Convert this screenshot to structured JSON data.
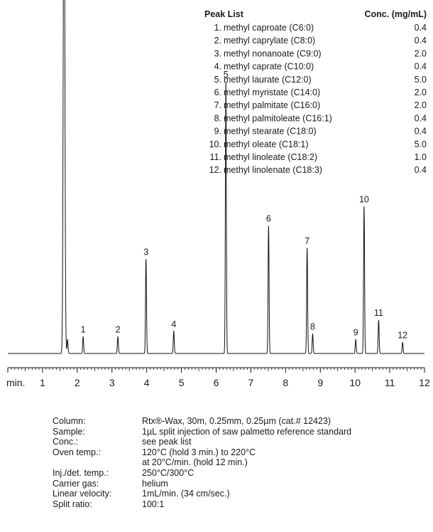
{
  "chart_data": {
    "type": "line",
    "x_axis": {
      "min": 0,
      "max": 12,
      "unit_label": "min.",
      "tick_labels": [
        "1",
        "2",
        "3",
        "4",
        "5",
        "6",
        "7",
        "8",
        "9",
        "10",
        "11",
        "12"
      ],
      "minor_ticks_per_unit": 10
    },
    "solvent_peak": {
      "x": 1.62,
      "y": 100
    },
    "peaks": [
      {
        "label": "1",
        "x": 2.17,
        "y": 3
      },
      {
        "label": "2",
        "x": 3.17,
        "y": 3
      },
      {
        "label": "3",
        "x": 3.98,
        "y": 17
      },
      {
        "label": "4",
        "x": 4.78,
        "y": 4
      },
      {
        "label": "5",
        "x": 6.28,
        "y": 49
      },
      {
        "label": "6",
        "x": 7.51,
        "y": 23
      },
      {
        "label": "7",
        "x": 8.62,
        "y": 19
      },
      {
        "label": "8",
        "x": 8.78,
        "y": 3.5
      },
      {
        "label": "9",
        "x": 10.02,
        "y": 2.5
      },
      {
        "label": "10",
        "x": 10.26,
        "y": 26.5
      },
      {
        "label": "11",
        "x": 10.68,
        "y": 6
      },
      {
        "label": "12",
        "x": 11.37,
        "y": 2
      }
    ],
    "y_range": [
      0,
      100
    ],
    "grid": false
  },
  "peak_list": {
    "header": "Peak List",
    "conc_header": "Conc. (mg/mL)",
    "items": [
      {
        "num": "1.",
        "name": "methyl caproate (C6:0)",
        "conc": "0.4"
      },
      {
        "num": "2.",
        "name": "methyl caprylate (C8:0)",
        "conc": "0.4"
      },
      {
        "num": "3.",
        "name": "methyl nonanoate (C9:0)",
        "conc": "2.0"
      },
      {
        "num": "4.",
        "name": "methyl caprate (C10:0)",
        "conc": "0.4"
      },
      {
        "num": "5.",
        "name": "methyl laurate (C12:0)",
        "conc": "5.0"
      },
      {
        "num": "6.",
        "name": "methyl myristate (C14:0)",
        "conc": "2.0"
      },
      {
        "num": "7.",
        "name": "methyl palmitate (C16:0)",
        "conc": "2.0"
      },
      {
        "num": "8.",
        "name": "methyl palmitoleate (C16:1)",
        "conc": "0.4"
      },
      {
        "num": "9.",
        "name": "methyl stearate (C18:0)",
        "conc": "0.4"
      },
      {
        "num": "10.",
        "name": "methyl oleate (C18:1)",
        "conc": "5.0"
      },
      {
        "num": "11.",
        "name": "methyl linoleate (C18:2)",
        "conc": "1.0"
      },
      {
        "num": "12.",
        "name": "methyl linolenate (C18:3)",
        "conc": "0.4"
      }
    ]
  },
  "figure_code": "GC_FF00538",
  "conditions": [
    {
      "label": "Column:",
      "lines": [
        "Rtx®-Wax, 30m, 0.25mm, 0.25µm (cat.# 12423)"
      ]
    },
    {
      "label": "Sample:",
      "lines": [
        "1µL split injection of saw palmetto reference standard"
      ]
    },
    {
      "label": "Conc.:",
      "lines": [
        "see peak list"
      ]
    },
    {
      "label": "Oven temp.:",
      "lines": [
        "120°C (hold 3 min.) to 220°C",
        "at 20°C/min. (hold 12 min.)"
      ]
    },
    {
      "label": "Inj./det. temp.:",
      "lines": [
        "250°C/300°C"
      ]
    },
    {
      "label": "Carrier gas:",
      "lines": [
        "helium"
      ]
    },
    {
      "label": "Linear velocity:",
      "lines": [
        "1mL/min. (34 cm/sec.)"
      ]
    },
    {
      "label": "Split ratio:",
      "lines": [
        "100:1"
      ]
    }
  ]
}
